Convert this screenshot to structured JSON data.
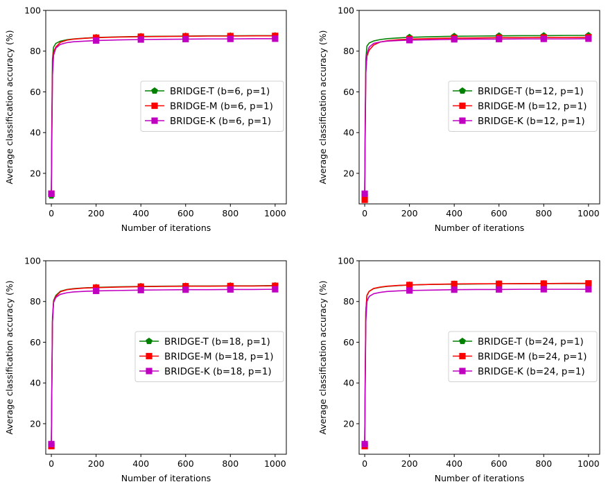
{
  "figure": {
    "layout": "2x2 grid of line charts"
  },
  "chart_data": [
    {
      "type": "line",
      "title": "",
      "xlabel": "Number of iterations",
      "ylabel": "Average classification accuracy (%)",
      "xlim": [
        -25,
        1050
      ],
      "ylim": [
        5,
        100
      ],
      "xticks": [
        "0",
        "200",
        "400",
        "600",
        "800",
        "1000"
      ],
      "yticks": [
        "20",
        "40",
        "60",
        "80",
        "100"
      ],
      "legend_position": "center-right",
      "series": [
        {
          "name": "BRIDGE-T (b=6, p=1)",
          "color": "#008000",
          "marker": "pentagon",
          "x": [
            0,
            2,
            5,
            10,
            20,
            40,
            70,
            100,
            150,
            200,
            300,
            400,
            500,
            600,
            700,
            800,
            900,
            1000
          ],
          "y": [
            9,
            45,
            76,
            82,
            83.8,
            84.9,
            85.6,
            86.0,
            86.4,
            86.7,
            87.0,
            87.2,
            87.3,
            87.4,
            87.5,
            87.5,
            87.6,
            87.6
          ]
        },
        {
          "name": "BRIDGE-M (b=6, p=1)",
          "color": "#ff0000",
          "marker": "square",
          "x": [
            0,
            2,
            5,
            10,
            20,
            40,
            70,
            100,
            150,
            200,
            300,
            400,
            500,
            600,
            700,
            800,
            900,
            1000
          ],
          "y": [
            10,
            40,
            70,
            79.5,
            82,
            84.3,
            85.4,
            85.9,
            86.3,
            86.6,
            86.9,
            87.1,
            87.2,
            87.3,
            87.4,
            87.4,
            87.5,
            87.5
          ]
        },
        {
          "name": "BRIDGE-K (b=6, p=1)",
          "color": "#c000c0",
          "marker": "square",
          "x": [
            0,
            2,
            5,
            10,
            20,
            40,
            70,
            100,
            150,
            200,
            300,
            400,
            500,
            600,
            700,
            800,
            900,
            1000
          ],
          "y": [
            10,
            35,
            68,
            78,
            81.5,
            83.3,
            84.2,
            84.6,
            84.9,
            85.2,
            85.5,
            85.7,
            85.8,
            85.9,
            86.0,
            86.0,
            86.1,
            86.1
          ]
        }
      ]
    },
    {
      "type": "line",
      "title": "",
      "xlabel": "Number of iterations",
      "ylabel": "Average classification accuracy (%)",
      "xlim": [
        -25,
        1050
      ],
      "ylim": [
        5,
        100
      ],
      "xticks": [
        "0",
        "200",
        "400",
        "600",
        "800",
        "1000"
      ],
      "yticks": [
        "20",
        "40",
        "60",
        "80",
        "100"
      ],
      "legend_position": "center-right",
      "series": [
        {
          "name": "BRIDGE-T (b=12, p=1)",
          "color": "#008000",
          "marker": "pentagon",
          "x": [
            0,
            2,
            5,
            10,
            20,
            40,
            70,
            100,
            150,
            200,
            300,
            400,
            500,
            600,
            700,
            800,
            900,
            1000
          ],
          "y": [
            9,
            45,
            76,
            82.5,
            84,
            85,
            85.7,
            86.1,
            86.5,
            86.8,
            87.1,
            87.3,
            87.4,
            87.5,
            87.6,
            87.6,
            87.7,
            87.7
          ]
        },
        {
          "name": "BRIDGE-M (b=12, p=1)",
          "color": "#ff0000",
          "marker": "square",
          "x": [
            0,
            2,
            5,
            10,
            20,
            40,
            70,
            100,
            150,
            200,
            300,
            400,
            500,
            600,
            700,
            800,
            900,
            1000
          ],
          "y": [
            7,
            38,
            70,
            77.5,
            80.5,
            83,
            84.5,
            85.1,
            85.6,
            85.9,
            86.2,
            86.4,
            86.5,
            86.6,
            86.6,
            86.7,
            86.7,
            86.8
          ]
        },
        {
          "name": "BRIDGE-K (b=12, p=1)",
          "color": "#c000c0",
          "marker": "square",
          "x": [
            0,
            2,
            5,
            10,
            20,
            40,
            70,
            100,
            150,
            200,
            300,
            400,
            500,
            600,
            700,
            800,
            900,
            1000
          ],
          "y": [
            10,
            36,
            69,
            78.5,
            82,
            83.8,
            84.5,
            84.9,
            85.2,
            85.4,
            85.6,
            85.8,
            85.9,
            85.9,
            86.0,
            86.0,
            86.0,
            86.1
          ]
        }
      ]
    },
    {
      "type": "line",
      "title": "",
      "xlabel": "Number of iterations",
      "ylabel": "Average classification accuracy (%)",
      "xlim": [
        -25,
        1050
      ],
      "ylim": [
        5,
        100
      ],
      "xticks": [
        "0",
        "200",
        "400",
        "600",
        "800",
        "1000"
      ],
      "yticks": [
        "20",
        "40",
        "60",
        "80",
        "100"
      ],
      "legend_position": "center-right",
      "series": [
        {
          "name": "BRIDGE-T (b=18, p=1)",
          "color": "#008000",
          "marker": "pentagon",
          "x": [
            0,
            2,
            5,
            10,
            20,
            40,
            70,
            100,
            150,
            200,
            300,
            400,
            500,
            600,
            700,
            800,
            900,
            1000
          ],
          "y": [
            9,
            38,
            72,
            80.5,
            83,
            85,
            85.9,
            86.3,
            86.7,
            86.9,
            87.2,
            87.4,
            87.5,
            87.6,
            87.6,
            87.7,
            87.7,
            87.8
          ]
        },
        {
          "name": "BRIDGE-M (b=18, p=1)",
          "color": "#ff0000",
          "marker": "square",
          "x": [
            0,
            2,
            5,
            10,
            20,
            40,
            70,
            100,
            150,
            200,
            300,
            400,
            500,
            600,
            700,
            800,
            900,
            1000
          ],
          "y": [
            9,
            36,
            70,
            80,
            82.5,
            84.8,
            85.8,
            86.2,
            86.6,
            86.8,
            87.1,
            87.3,
            87.4,
            87.5,
            87.5,
            87.6,
            87.6,
            87.7
          ]
        },
        {
          "name": "BRIDGE-K (b=18, p=1)",
          "color": "#c000c0",
          "marker": "square",
          "x": [
            0,
            2,
            5,
            10,
            20,
            40,
            70,
            100,
            150,
            200,
            300,
            400,
            500,
            600,
            700,
            800,
            900,
            1000
          ],
          "y": [
            10,
            36,
            70,
            79.5,
            82,
            83.5,
            84.3,
            84.7,
            85.0,
            85.2,
            85.4,
            85.6,
            85.7,
            85.8,
            85.8,
            85.9,
            85.9,
            86.0
          ]
        }
      ]
    },
    {
      "type": "line",
      "title": "",
      "xlabel": "Number of iterations",
      "ylabel": "Average classification accuracy (%)",
      "xlim": [
        -25,
        1050
      ],
      "ylim": [
        5,
        100
      ],
      "xticks": [
        "0",
        "200",
        "400",
        "600",
        "800",
        "1000"
      ],
      "yticks": [
        "20",
        "40",
        "60",
        "80",
        "100"
      ],
      "legend_position": "center-right",
      "series": [
        {
          "name": "BRIDGE-T (b=24, p=1)",
          "color": "#008000",
          "marker": "pentagon",
          "x": [
            0,
            2,
            5,
            10,
            20,
            40,
            70,
            100,
            150,
            200,
            300,
            400,
            500,
            600,
            700,
            800,
            900,
            1000
          ],
          "y": [
            9,
            40,
            75,
            83,
            85,
            86.3,
            87,
            87.4,
            87.8,
            88.1,
            88.4,
            88.5,
            88.6,
            88.7,
            88.7,
            88.8,
            88.8,
            88.8
          ]
        },
        {
          "name": "BRIDGE-M (b=24, p=1)",
          "color": "#ff0000",
          "marker": "square",
          "x": [
            0,
            2,
            5,
            10,
            20,
            40,
            70,
            100,
            150,
            200,
            300,
            400,
            500,
            600,
            700,
            800,
            900,
            1000
          ],
          "y": [
            9,
            40,
            75,
            83,
            85,
            86.4,
            87.1,
            87.5,
            87.9,
            88.1,
            88.4,
            88.6,
            88.7,
            88.7,
            88.8,
            88.8,
            88.9,
            88.9
          ]
        },
        {
          "name": "BRIDGE-K (b=24, p=1)",
          "color": "#c000c0",
          "marker": "square",
          "x": [
            0,
            2,
            5,
            10,
            20,
            40,
            70,
            100,
            150,
            200,
            300,
            400,
            500,
            600,
            700,
            800,
            900,
            1000
          ],
          "y": [
            10,
            35,
            70,
            80,
            82.5,
            83.8,
            84.5,
            84.9,
            85.2,
            85.4,
            85.6,
            85.8,
            85.9,
            85.9,
            86.0,
            86.0,
            86.0,
            86.0
          ]
        }
      ]
    }
  ]
}
